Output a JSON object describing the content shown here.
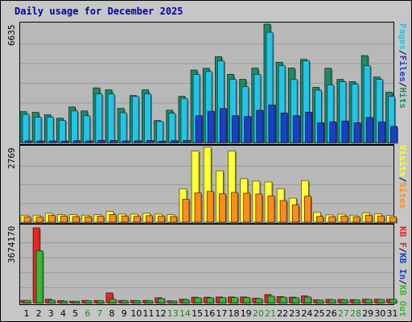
{
  "title": "Daily usage for December 2025",
  "colors": {
    "hits": "#1e8a66",
    "files": "#22c4e8",
    "pages": "#1a40c8",
    "visits": "#ffff33",
    "sites": "#ff8c1a",
    "kbin": "#33bb33",
    "kbout": "#1e9a7a",
    "kbf": "#ee2222",
    "weekend_label": "#228822",
    "weekday_label": "#000000"
  },
  "right_labels": {
    "top": [
      {
        "text": "Pages",
        "color": "#22c4e8"
      },
      {
        "text": "/",
        "color": "#000000"
      },
      {
        "text": "Files",
        "color": "#1a40c8"
      },
      {
        "text": "/",
        "color": "#000000"
      },
      {
        "text": "Hits",
        "color": "#1e8a66"
      }
    ],
    "middle": [
      {
        "text": "Visits",
        "color": "#ffff33"
      },
      {
        "text": "/",
        "color": "#000000"
      },
      {
        "text": "Sites",
        "color": "#ff8c1a"
      }
    ],
    "bottom": [
      {
        "text": "KB F",
        "color": "#ee2222"
      },
      {
        "text": "/",
        "color": "#000000"
      },
      {
        "text": "KB In",
        "color": "#1a40c8"
      },
      {
        "text": "/",
        "color": "#000000"
      },
      {
        "text": "KB Out",
        "color": "#33bb33"
      }
    ]
  },
  "chart_data": {
    "type": "bar",
    "categories": [
      "1",
      "2",
      "3",
      "4",
      "5",
      "6",
      "7",
      "8",
      "9",
      "10",
      "11",
      "12",
      "13",
      "14",
      "15",
      "16",
      "17",
      "18",
      "19",
      "20",
      "21",
      "22",
      "23",
      "24",
      "25",
      "26",
      "27",
      "28",
      "29",
      "30",
      "31"
    ],
    "weekend_days": [
      "6",
      "7",
      "13",
      "14",
      "20",
      "21",
      "27",
      "28"
    ],
    "panels": [
      {
        "ymax_label": "6635",
        "ymax": 6635,
        "series": [
          {
            "name": "Hits",
            "values": [
              1730,
              1690,
              1550,
              1360,
              1990,
              1770,
              3060,
              2950,
              1910,
              2630,
              2950,
              1230,
              1810,
              2590,
              4060,
              4160,
              4810,
              3820,
              3540,
              4170,
              6635,
              4500,
              4170,
              4660,
              3090,
              4160,
              3540,
              3410,
              4870,
              3670,
              2820
            ]
          },
          {
            "name": "Files",
            "values": [
              1580,
              1420,
              1420,
              1240,
              1770,
              1500,
              2720,
              2720,
              1670,
              2590,
              2720,
              1180,
              1640,
              2470,
              3820,
              3980,
              4580,
              3540,
              3130,
              3820,
              6180,
              4300,
              3530,
              4580,
              2930,
              3230,
              3410,
              3270,
              4300,
              3540,
              2590
            ]
          },
          {
            "name": "Pages",
            "values": [
              90,
              90,
              90,
              80,
              100,
              90,
              120,
              110,
              90,
              100,
              110,
              70,
              100,
              110,
              1500,
              1750,
              1900,
              1500,
              1450,
              1800,
              2100,
              1650,
              1500,
              1700,
              1100,
              1150,
              1200,
              1100,
              1400,
              1150,
              900
            ]
          }
        ]
      },
      {
        "ymax_label": "2769",
        "ymax": 2769,
        "series": [
          {
            "name": "Visits",
            "values": [
              260,
              260,
              330,
              280,
              280,
              260,
              280,
              400,
              300,
              300,
              330,
              300,
              280,
              1230,
              2630,
              2769,
              1900,
              2630,
              1610,
              1520,
              1490,
              1240,
              890,
              1540,
              360,
              270,
              300,
              260,
              350,
              310,
              250
            ]
          },
          {
            "name": "Sites",
            "values": [
              200,
              190,
              250,
              230,
              210,
              200,
              220,
              280,
              230,
              220,
              240,
              220,
              210,
              850,
              1080,
              1140,
              1050,
              1100,
              1070,
              1040,
              970,
              800,
              640,
              960,
              210,
              200,
              220,
              200,
              260,
              230,
              200
            ]
          }
        ]
      },
      {
        "ymax_label": "3674170",
        "ymax": 3674170,
        "series": [
          {
            "name": "KB F",
            "values": [
              110000,
              3674170,
              170000,
              100000,
              70000,
              110000,
              110000,
              480000,
              110000,
              110000,
              110000,
              240000,
              90000,
              170000,
              270000,
              270000,
              280000,
              280000,
              280000,
              220000,
              400000,
              300000,
              270000,
              330000,
              140000,
              160000,
              160000,
              150000,
              170000,
              170000,
              170000
            ]
          },
          {
            "name": "KB Out",
            "values": [
              110000,
              2550000,
              120000,
              80000,
              70000,
              100000,
              100000,
              170000,
              100000,
              100000,
              100000,
              200000,
              80000,
              150000,
              240000,
              240000,
              250000,
              250000,
              250000,
              200000,
              320000,
              270000,
              240000,
              280000,
              130000,
              150000,
              150000,
              140000,
              160000,
              160000,
              160000
            ]
          }
        ]
      }
    ]
  }
}
